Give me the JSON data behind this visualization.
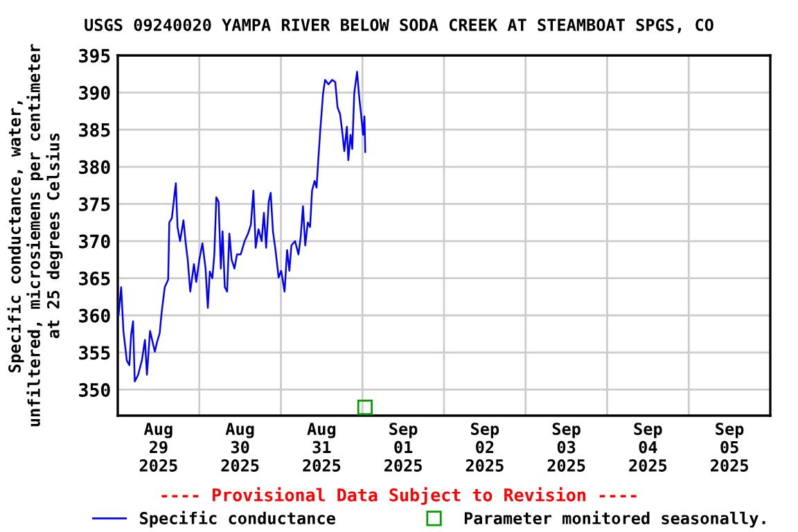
{
  "chart_data": {
    "type": "line",
    "title": "USGS 09240020 YAMPA RIVER BELOW SODA CREEK AT STEAMBOAT SPGS, CO",
    "ylabel": "Specific conductance, water,\nunfiltered, microsiemens per centimeter\nat 25 degrees Celsius",
    "annotations": [
      "---- Provisional Data Subject to Revision ----"
    ],
    "xlim": [
      "2025-08-29T00:00",
      "2025-09-06T00:00"
    ],
    "xticks": [
      {
        "value": "2025-08-29T12:00",
        "label": "Aug\n29\n2025"
      },
      {
        "value": "2025-08-30T12:00",
        "label": "Aug\n30\n2025"
      },
      {
        "value": "2025-08-31T12:00",
        "label": "Aug\n31\n2025"
      },
      {
        "value": "2025-09-01T12:00",
        "label": "Sep\n01\n2025"
      },
      {
        "value": "2025-09-02T12:00",
        "label": "Sep\n02\n2025"
      },
      {
        "value": "2025-09-03T12:00",
        "label": "Sep\n03\n2025"
      },
      {
        "value": "2025-09-04T12:00",
        "label": "Sep\n04\n2025"
      },
      {
        "value": "2025-09-05T12:00",
        "label": "Sep\n05\n2025"
      },
      {
        "value": "2025-08-30T00:00",
        "label": null
      },
      {
        "value": "2025-08-31T00:00",
        "label": null
      },
      {
        "value": "2025-09-01T00:00",
        "label": null
      },
      {
        "value": "2025-09-02T00:00",
        "label": null
      },
      {
        "value": "2025-09-03T00:00",
        "label": null
      },
      {
        "value": "2025-09-04T00:00",
        "label": null
      },
      {
        "value": "2025-09-05T00:00",
        "label": null
      }
    ],
    "ylim": [
      346.5,
      395
    ],
    "yticks": [
      350,
      355,
      360,
      365,
      370,
      375,
      380,
      385,
      390,
      395
    ],
    "grid": true,
    "legend": "bottom",
    "series": [
      {
        "name": "Specific conductance",
        "color": "#0000ff",
        "marker": "none",
        "x": [
          "2025-08-29T00:15",
          "2025-08-29T01:00",
          "2025-08-29T01:40",
          "2025-08-29T02:40",
          "2025-08-29T03:25",
          "2025-08-29T03:55",
          "2025-08-29T04:30",
          "2025-08-29T05:00",
          "2025-08-29T06:00",
          "2025-08-29T07:05",
          "2025-08-29T08:00",
          "2025-08-29T08:35",
          "2025-08-29T09:30",
          "2025-08-29T10:55",
          "2025-08-29T11:30",
          "2025-08-29T12:20",
          "2025-08-29T12:55",
          "2025-08-29T13:50",
          "2025-08-29T14:50",
          "2025-08-29T15:10",
          "2025-08-29T15:55",
          "2025-08-29T17:05",
          "2025-08-29T17:35",
          "2025-08-29T18:20",
          "2025-08-29T19:20",
          "2025-08-29T20:00",
          "2025-08-29T20:35",
          "2025-08-29T21:20",
          "2025-08-29T22:25",
          "2025-08-29T23:05",
          "2025-08-30T00:00",
          "2025-08-30T00:55",
          "2025-08-30T01:50",
          "2025-08-30T02:30",
          "2025-08-30T03:05",
          "2025-08-30T03:50",
          "2025-08-30T04:25",
          "2025-08-30T05:00",
          "2025-08-30T05:40",
          "2025-08-30T06:20",
          "2025-08-30T06:50",
          "2025-08-30T07:30",
          "2025-08-30T08:10",
          "2025-08-30T08:50",
          "2025-08-30T09:30",
          "2025-08-30T10:20",
          "2025-08-30T11:05",
          "2025-08-30T12:10",
          "2025-08-30T13:20",
          "2025-08-30T14:20",
          "2025-08-30T15:10",
          "2025-08-30T15:55",
          "2025-08-30T16:35",
          "2025-08-30T17:25",
          "2025-08-30T18:20",
          "2025-08-30T19:00",
          "2025-08-30T19:40",
          "2025-08-30T20:25",
          "2025-08-30T21:00",
          "2025-08-30T21:40",
          "2025-08-30T22:25",
          "2025-08-30T23:20",
          "2025-08-31T00:05",
          "2025-08-31T01:05",
          "2025-08-31T01:50",
          "2025-08-31T02:30",
          "2025-08-31T03:05",
          "2025-08-31T04:10",
          "2025-08-31T05:10",
          "2025-08-31T05:50",
          "2025-08-31T06:30",
          "2025-08-31T07:10",
          "2025-08-31T07:55",
          "2025-08-31T08:35",
          "2025-08-31T09:10",
          "2025-08-31T09:55",
          "2025-08-31T10:30",
          "2025-08-31T10:55",
          "2025-08-31T11:35",
          "2025-08-31T12:25",
          "2025-08-31T13:00",
          "2025-08-31T14:00",
          "2025-08-31T15:05",
          "2025-08-31T16:00",
          "2025-08-31T16:40",
          "2025-08-31T17:25",
          "2025-08-31T18:05",
          "2025-08-31T18:40",
          "2025-08-31T19:25",
          "2025-08-31T19:50",
          "2025-08-31T20:30",
          "2025-08-31T21:00",
          "2025-08-31T21:35",
          "2025-08-31T22:25",
          "2025-08-31T23:05",
          "2025-08-31T23:35",
          "2025-09-01T00:10",
          "2025-09-01T00:35",
          "2025-09-01T00:50"
        ],
        "values": [
          360.1,
          363.8,
          357.9,
          353.9,
          353.3,
          357.3,
          359.2,
          351.1,
          352.0,
          353.9,
          356.7,
          352.0,
          357.9,
          355.1,
          356.3,
          357.6,
          360.4,
          363.8,
          364.8,
          372.5,
          373.1,
          377.8,
          371.9,
          370.0,
          372.8,
          369.7,
          367.5,
          363.2,
          366.9,
          364.5,
          367.5,
          369.7,
          366.3,
          361.0,
          365.9,
          365.0,
          368.2,
          375.9,
          375.3,
          366.3,
          371.3,
          363.8,
          363.2,
          371.0,
          367.5,
          366.3,
          368.2,
          368.2,
          370.0,
          371.0,
          372.2,
          376.8,
          369.1,
          371.6,
          370.0,
          373.8,
          369.1,
          375.3,
          376.5,
          371.3,
          368.8,
          365.1,
          366.0,
          363.2,
          368.8,
          366.0,
          369.4,
          370.0,
          368.2,
          370.6,
          374.7,
          369.4,
          372.5,
          371.9,
          376.8,
          378.1,
          377.2,
          380.3,
          384.9,
          389.9,
          391.7,
          391.1,
          391.7,
          391.4,
          388.0,
          387.1,
          384.6,
          382.1,
          385.4,
          380.9,
          384.3,
          382.4,
          389.9,
          392.8,
          389.2,
          387.1,
          384.3,
          386.8,
          382.0
        ]
      },
      {
        "name": "Parameter monitored seasonally.",
        "color": "#00a000",
        "type": "scatter",
        "marker": "square",
        "x": [
          "2025-09-01T00:45"
        ],
        "values": [
          347.6
        ]
      }
    ]
  }
}
